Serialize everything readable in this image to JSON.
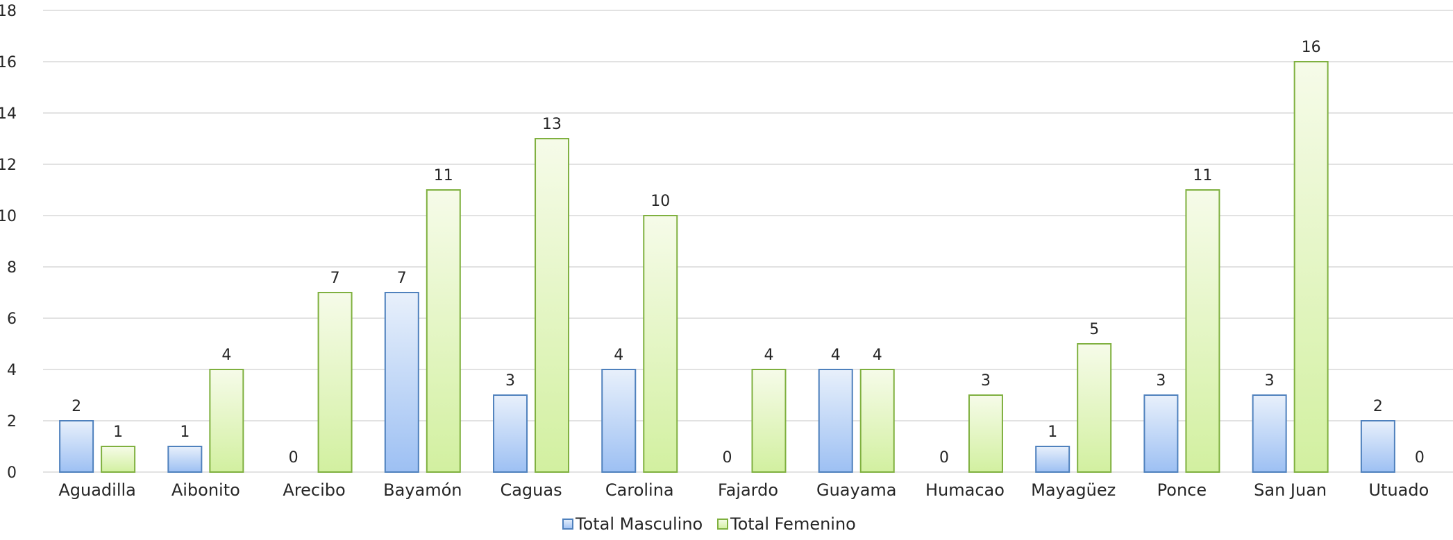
{
  "chart_data": {
    "type": "bar",
    "categories": [
      "Aguadilla",
      "Aibonito",
      "Arecibo",
      "Bayamón",
      "Caguas",
      "Carolina",
      "Fajardo",
      "Guayama",
      "Humacao",
      "Mayagüez",
      "Ponce",
      "San Juan",
      "Utuado"
    ],
    "series": [
      {
        "name": "Total Masculino",
        "values": [
          2,
          1,
          0,
          7,
          3,
          4,
          0,
          4,
          0,
          1,
          3,
          3,
          2
        ],
        "color": "#4f81bd",
        "fill_top": "#e8f0fb",
        "fill_bottom": "#9dc0f3"
      },
      {
        "name": "Total Femenino",
        "values": [
          1,
          4,
          7,
          11,
          13,
          10,
          4,
          4,
          3,
          5,
          11,
          16,
          0
        ],
        "color": "#7fb03f",
        "fill_top": "#f6fbe9",
        "fill_bottom": "#d2f0a0"
      }
    ],
    "yticks": [
      0,
      2,
      4,
      6,
      8,
      10,
      12,
      14,
      16,
      18
    ],
    "ylim": [
      0,
      18
    ],
    "grid": true,
    "legend": "bottom-center",
    "data_labels": true
  }
}
